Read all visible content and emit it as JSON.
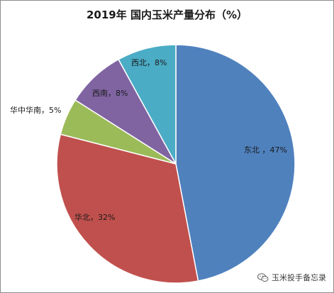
{
  "chart_data": {
    "type": "pie",
    "title": "2019年 国内玉米产量分布（%）",
    "slices": [
      {
        "label": "东北",
        "value": 47,
        "color": "#4f81bd",
        "display": "东北 ，47%"
      },
      {
        "label": "华北",
        "value": 32,
        "color": "#c0504d",
        "display": "华北，32%"
      },
      {
        "label": "华中华南",
        "value": 5,
        "color": "#9bbb59",
        "display": "华中华南，5%"
      },
      {
        "label": "西南",
        "value": 8,
        "color": "#8064a2",
        "display": "西南，8%"
      },
      {
        "label": "西北",
        "value": 8,
        "color": "#4bacc6",
        "display": "西北，8%"
      }
    ]
  },
  "watermark": {
    "text": "玉米投手备忘录",
    "icon": "wechat-icon"
  }
}
